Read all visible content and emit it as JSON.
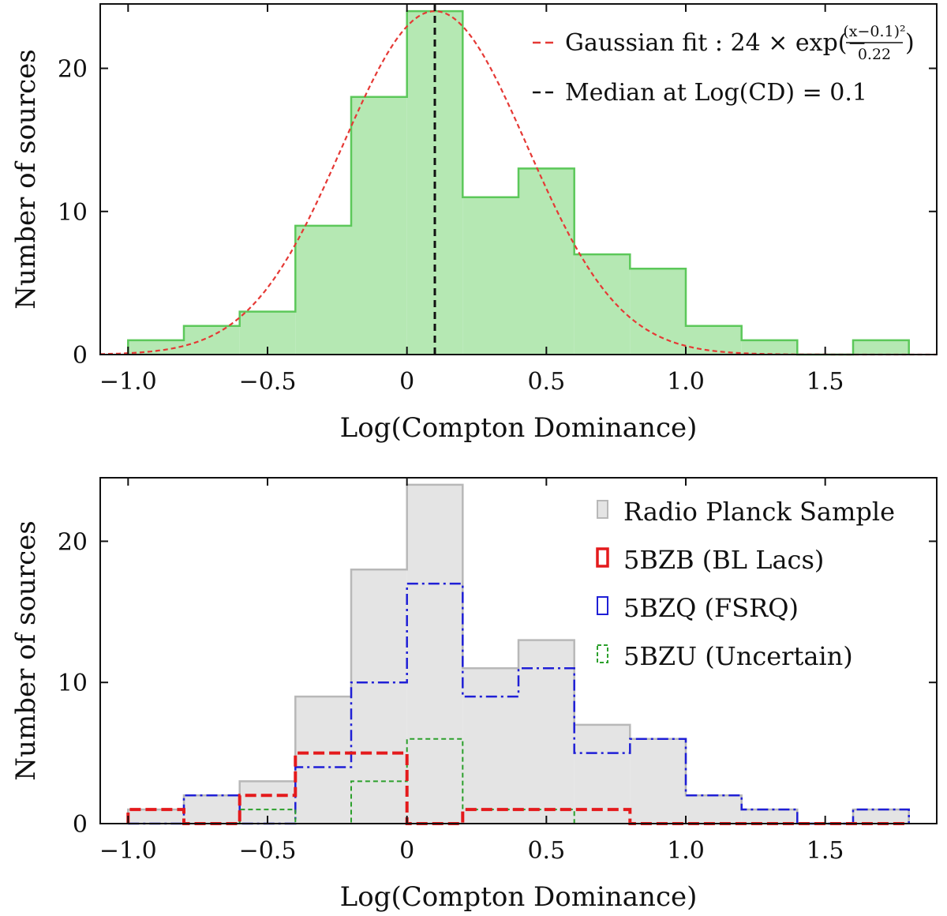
{
  "colors": {
    "green_fill": "#b5e8b3",
    "green_line": "#5cc85a",
    "gaussian_red": "#e53935",
    "median_black": "#111111",
    "grey_fill": "#e4e4e4",
    "grey_line": "#b8b8b8",
    "bzb_red": "#e41a1c",
    "bzq_blue": "#1f1fd6",
    "bzu_green": "#2ca02c"
  },
  "chart_data": [
    {
      "type": "bar",
      "histogram": true,
      "xlabel": "Log(Compton Dominance)",
      "ylabel": "Number of sources",
      "xlim": [
        -1.1,
        1.9
      ],
      "ylim": [
        0,
        24.5
      ],
      "xticks": [
        -1.0,
        -0.5,
        0,
        0.5,
        1.0,
        1.5
      ],
      "xtick_labels": [
        "−1.0",
        "−0.5",
        "0",
        "0.5",
        "1.0",
        "1.5"
      ],
      "yticks": [
        0,
        10,
        20
      ],
      "ytick_labels": [
        "0",
        "10",
        "20"
      ],
      "bin_edges": [
        -1.0,
        -0.8,
        -0.6,
        -0.4,
        -0.2,
        0.0,
        0.2,
        0.4,
        0.6,
        0.8,
        1.0,
        1.2,
        1.4,
        1.6,
        1.8
      ],
      "counts": [
        1,
        2,
        3,
        9,
        18,
        24,
        11,
        13,
        7,
        6,
        2,
        1,
        0,
        1
      ],
      "gaussian": {
        "amplitude": 24,
        "mean": 0.1,
        "denominator": 0.22
      },
      "median": 0.1,
      "legend_position": "top-right",
      "legend": [
        {
          "key": "gaussian",
          "pre": "Gaussian fit : 24 × exp(−",
          "num": "(x−0.1)²",
          "den": "0.22",
          "post": ")"
        },
        {
          "key": "median",
          "label": "Median at Log(CD) = 0.1"
        }
      ]
    },
    {
      "type": "bar",
      "histogram": true,
      "xlabel": "Log(Compton Dominance)",
      "ylabel": "Number of sources",
      "xlim": [
        -1.1,
        1.9
      ],
      "ylim": [
        0,
        24.5
      ],
      "xticks": [
        -1.0,
        -0.5,
        0,
        0.5,
        1.0,
        1.5
      ],
      "xtick_labels": [
        "−1.0",
        "−0.5",
        "0",
        "0.5",
        "1.0",
        "1.5"
      ],
      "yticks": [
        0,
        10,
        20
      ],
      "ytick_labels": [
        "0",
        "10",
        "20"
      ],
      "bin_edges": [
        -1.0,
        -0.8,
        -0.6,
        -0.4,
        -0.2,
        0.0,
        0.2,
        0.4,
        0.6,
        0.8,
        1.0,
        1.2,
        1.4,
        1.6,
        1.8
      ],
      "legend_position": "top-right",
      "series": [
        {
          "key": "radio",
          "name": "Radio Planck Sample",
          "counts": [
            1,
            2,
            3,
            9,
            18,
            24,
            11,
            13,
            7,
            6,
            2,
            1,
            0,
            1
          ]
        },
        {
          "key": "bzb",
          "name": "5BZB (BL Lacs)",
          "counts": [
            1,
            0,
            2,
            5,
            5,
            0,
            1,
            1,
            1,
            0,
            0,
            0,
            0,
            0
          ]
        },
        {
          "key": "bzq",
          "name": "5BZQ (FSRQ)",
          "counts": [
            0,
            2,
            0,
            4,
            10,
            17,
            9,
            11,
            5,
            6,
            2,
            1,
            0,
            1
          ]
        },
        {
          "key": "bzu",
          "name": "5BZU (Uncertain)",
          "counts": [
            0,
            0,
            1,
            0,
            3,
            6,
            1,
            1,
            0,
            0,
            0,
            0,
            0,
            0
          ]
        }
      ]
    }
  ]
}
